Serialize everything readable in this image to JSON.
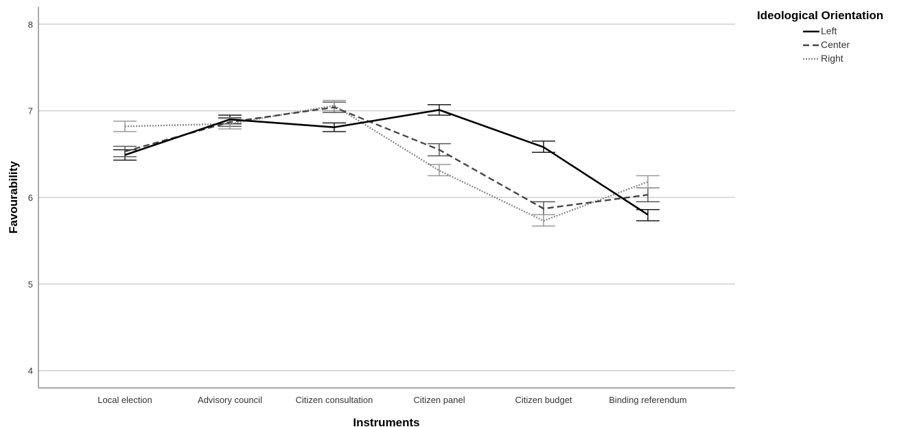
{
  "chart_data": {
    "type": "line",
    "xlabel": "Instruments",
    "ylabel": "Favourability",
    "categories": [
      "Local election",
      "Advisory council",
      "Citizen consultation",
      "Citizen panel",
      "Citizen budget",
      "Binding referendum"
    ],
    "ylim": [
      3.8,
      8.2
    ],
    "yticks": [
      4,
      5,
      6,
      7,
      8
    ],
    "grid": true,
    "legend": {
      "title": "Ideological Orientation",
      "position": "top-right"
    },
    "series": [
      {
        "name": "Left",
        "style": "solid",
        "color": "#000000",
        "values": [
          6.49,
          6.9,
          6.81,
          7.01,
          6.58,
          5.8
        ],
        "ci_low": [
          6.43,
          6.85,
          6.76,
          6.95,
          6.52,
          5.73
        ],
        "ci_high": [
          6.55,
          6.95,
          6.86,
          7.07,
          6.65,
          5.86
        ]
      },
      {
        "name": "Center",
        "style": "dashed",
        "color": "#444444",
        "values": [
          6.53,
          6.87,
          7.04,
          6.55,
          5.87,
          6.03
        ],
        "ci_low": [
          6.47,
          6.82,
          6.98,
          6.48,
          5.8,
          5.95
        ],
        "ci_high": [
          6.59,
          6.92,
          7.1,
          6.62,
          5.95,
          6.11
        ]
      },
      {
        "name": "Right",
        "style": "dotted",
        "color": "#8a8a8a",
        "values": [
          6.82,
          6.85,
          7.06,
          6.31,
          5.73,
          6.18
        ],
        "ci_low": [
          6.76,
          6.79,
          7.0,
          6.25,
          5.67,
          6.11
        ],
        "ci_high": [
          6.88,
          6.91,
          7.12,
          6.38,
          5.8,
          6.25
        ]
      }
    ]
  }
}
